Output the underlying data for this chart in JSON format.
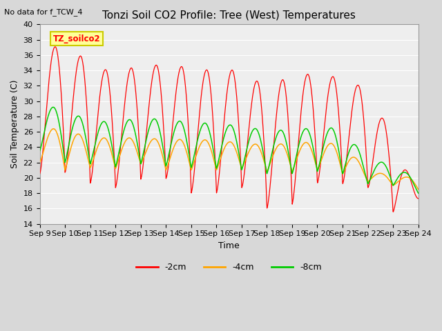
{
  "title": "Tonzi Soil CO2 Profile: Tree (West) Temperatures",
  "no_data_text": "No data for f_TCW_4",
  "xlabel": "Time",
  "ylabel": "Soil Temperature (C)",
  "ylim": [
    14,
    40
  ],
  "yticks": [
    14,
    16,
    18,
    20,
    22,
    24,
    26,
    28,
    30,
    32,
    34,
    36,
    38,
    40
  ],
  "xtick_labels": [
    "Sep 9",
    "Sep 10",
    "Sep 11",
    "Sep 12",
    "Sep 13",
    "Sep 14",
    "Sep 15",
    "Sep 16",
    "Sep 17",
    "Sep 18",
    "Sep 19",
    "Sep 20",
    "Sep 21",
    "Sep 22",
    "Sep 23",
    "Sep 24"
  ],
  "legend_labels": [
    "-2cm",
    "-4cm",
    "-8cm"
  ],
  "line_colors": [
    "#ff0000",
    "#ffa500",
    "#00cc00"
  ],
  "bg_color": "#d8d8d8",
  "plot_bg_color": "#eeeeee",
  "box_facecolor": "#ffff99",
  "box_edgecolor": "#cccc00",
  "sensor_label": "TZ_soilco2",
  "start_day": 9,
  "end_day": 24,
  "n_points": 1500,
  "red_peaks": [
    38.0,
    36.5,
    35.5,
    33.2,
    35.0,
    34.5,
    34.5,
    33.8,
    34.2,
    31.6,
    33.5,
    33.5,
    33.0,
    31.5,
    25.2,
    17.5
  ],
  "red_valleys": [
    20.5,
    20.7,
    19.3,
    18.7,
    19.8,
    19.9,
    18.0,
    18.0,
    18.7,
    16.0,
    16.5,
    19.3,
    19.2,
    18.7,
    15.5,
    17.3
  ],
  "orange_peaks": [
    26.5,
    26.3,
    25.2,
    25.2,
    25.2,
    25.0,
    25.0,
    24.9,
    24.5,
    24.3,
    24.5,
    24.7,
    24.3,
    21.0,
    20.2,
    20.0
  ],
  "orange_valleys": [
    22.0,
    21.0,
    21.3,
    21.2,
    21.8,
    21.0,
    21.0,
    21.0,
    21.2,
    20.8,
    20.8,
    21.0,
    20.5,
    19.5,
    19.0,
    18.5
  ],
  "green_peaks": [
    29.8,
    28.7,
    27.5,
    27.2,
    27.9,
    27.5,
    27.3,
    27.0,
    26.8,
    26.1,
    26.3,
    26.5,
    26.5,
    22.2,
    21.9,
    19.5
  ],
  "green_valleys": [
    23.5,
    22.0,
    21.8,
    21.4,
    21.8,
    21.5,
    21.3,
    21.2,
    21.0,
    20.5,
    20.5,
    20.8,
    20.5,
    19.2,
    19.0,
    18.0
  ]
}
